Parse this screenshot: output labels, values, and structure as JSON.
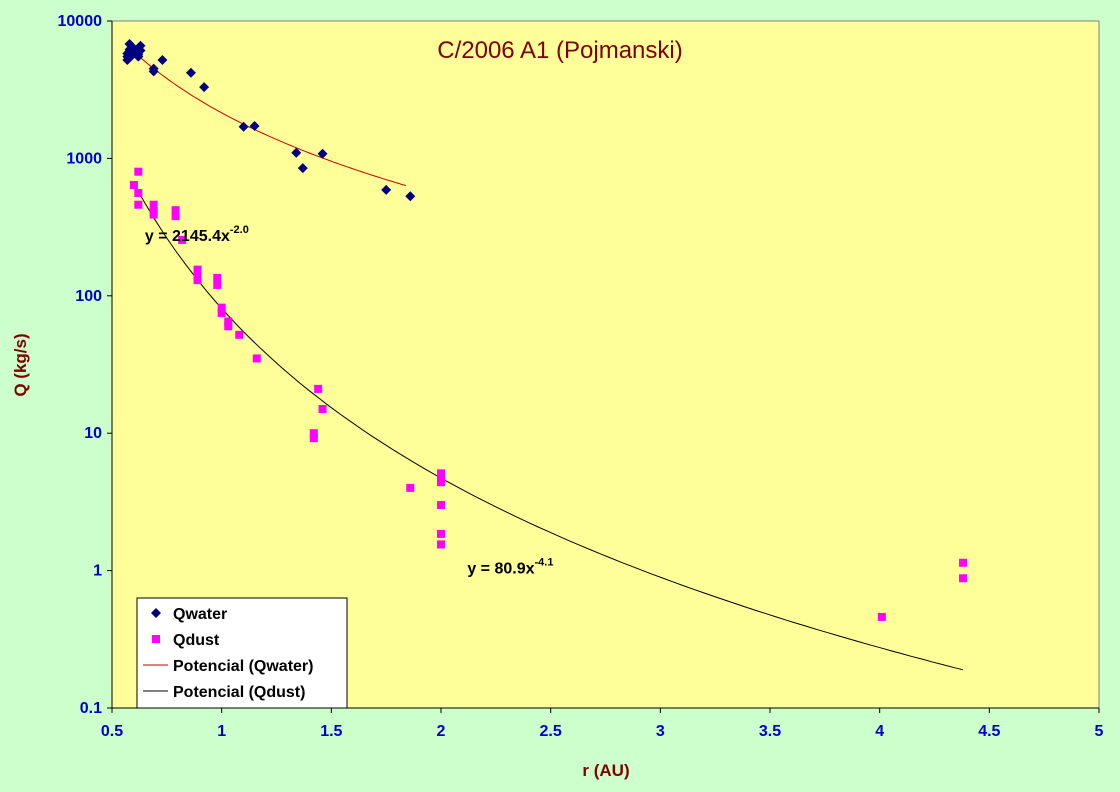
{
  "chart_data": {
    "type": "scatter",
    "title": "C/2006 A1 (Pojmanski)",
    "xlabel": "r (AU)",
    "ylabel": "Q (kg/s)",
    "xlim": [
      0.5,
      5
    ],
    "ylim": [
      0.1,
      10000
    ],
    "y_scale": "log",
    "x_ticks": [
      "0.5",
      "1",
      "1.5",
      "2",
      "2.5",
      "3",
      "3.5",
      "4",
      "4.5",
      "5"
    ],
    "y_ticks": [
      "0.1",
      "1",
      "10",
      "100",
      "1000",
      "10000"
    ],
    "grid": false,
    "legend_position": "bottom-left",
    "series": [
      {
        "name": "Qwater",
        "kind": "points",
        "marker": "diamond",
        "color": "#000080",
        "points": [
          [
            0.57,
            5200
          ],
          [
            0.57,
            5500
          ],
          [
            0.57,
            5800
          ],
          [
            0.58,
            6200
          ],
          [
            0.58,
            6800
          ],
          [
            0.58,
            5400
          ],
          [
            0.59,
            6000
          ],
          [
            0.59,
            5600
          ],
          [
            0.6,
            5900
          ],
          [
            0.6,
            6300
          ],
          [
            0.61,
            5800
          ],
          [
            0.62,
            5700
          ],
          [
            0.62,
            5500
          ],
          [
            0.63,
            6100
          ],
          [
            0.63,
            6600
          ],
          [
            0.69,
            4300
          ],
          [
            0.69,
            4500
          ],
          [
            0.73,
            5200
          ],
          [
            0.86,
            4200
          ],
          [
            0.92,
            3300
          ],
          [
            1.1,
            1700
          ],
          [
            1.15,
            1720
          ],
          [
            1.34,
            1100
          ],
          [
            1.37,
            850
          ],
          [
            1.46,
            1080
          ],
          [
            1.75,
            590
          ],
          [
            1.86,
            530
          ]
        ]
      },
      {
        "name": "Qdust",
        "kind": "points",
        "marker": "square",
        "color": "#ff00ff",
        "points": [
          [
            0.6,
            640
          ],
          [
            0.62,
            800
          ],
          [
            0.62,
            560
          ],
          [
            0.62,
            460
          ],
          [
            0.69,
            460
          ],
          [
            0.69,
            410
          ],
          [
            0.69,
            390
          ],
          [
            0.79,
            420
          ],
          [
            0.79,
            380
          ],
          [
            0.82,
            255
          ],
          [
            0.89,
            155
          ],
          [
            0.89,
            140
          ],
          [
            0.89,
            130
          ],
          [
            0.98,
            135
          ],
          [
            0.98,
            120
          ],
          [
            1.0,
            82
          ],
          [
            1.0,
            75
          ],
          [
            1.03,
            65
          ],
          [
            1.03,
            60
          ],
          [
            1.08,
            52
          ],
          [
            1.16,
            35
          ],
          [
            1.42,
            10
          ],
          [
            1.42,
            9.2
          ],
          [
            1.44,
            21
          ],
          [
            1.46,
            15
          ],
          [
            1.86,
            4
          ],
          [
            2.0,
            5.1
          ],
          [
            2.0,
            4.7
          ],
          [
            2.0,
            4.4
          ],
          [
            2.0,
            3.0
          ],
          [
            2.0,
            1.85
          ],
          [
            2.0,
            1.55
          ],
          [
            4.01,
            0.46
          ],
          [
            4.38,
            1.14
          ],
          [
            4.38,
            0.88
          ]
        ]
      },
      {
        "name": "Potencial (Qwater)",
        "kind": "trend",
        "color": "#cc0000",
        "coef": 2145.4,
        "exponent": -2.0,
        "x_range": [
          0.57,
          1.84
        ]
      },
      {
        "name": "Potencial (Qdust)",
        "kind": "trend",
        "color": "#000000",
        "coef": 80.9,
        "exponent": -4.1,
        "x_range": [
          0.6,
          4.38
        ]
      }
    ],
    "annotations": [
      {
        "base": "y = 2145.4x",
        "sup": "-2.0",
        "at": [
          0.65,
          250
        ]
      },
      {
        "base": "y = 80.9x",
        "sup": "-4.1",
        "at": [
          2.12,
          0.95
        ]
      }
    ]
  }
}
